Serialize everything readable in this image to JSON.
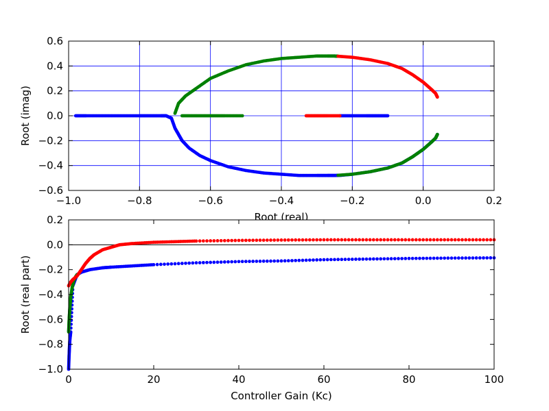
{
  "chart_data": [
    {
      "type": "scatter",
      "title": "",
      "xlabel": "Root (real)",
      "ylabel": "Root (imag)",
      "xlim": [
        -1.0,
        0.2
      ],
      "ylim": [
        -0.6,
        0.6
      ],
      "xticks": [
        -1.0,
        -0.8,
        -0.6,
        -0.4,
        -0.2,
        0.0,
        0.2
      ],
      "yticks": [
        -0.6,
        -0.4,
        -0.2,
        0.0,
        0.2,
        0.4,
        0.6
      ],
      "xtick_labels": [
        "−1.0",
        "−0.8",
        "−0.6",
        "−0.4",
        "−0.2",
        "0.0",
        "0.2"
      ],
      "ytick_labels": [
        "−0.6",
        "−0.4",
        "−0.2",
        "0.0",
        "0.2",
        "0.4",
        "0.6"
      ],
      "grid": true,
      "series": [
        {
          "color": "#0000ff",
          "x": [
            -0.98,
            -0.95,
            -0.9,
            -0.85,
            -0.8,
            -0.77,
            -0.74,
            -0.725,
            -0.71,
            -0.7,
            -0.69,
            -0.68,
            -0.66,
            -0.63,
            -0.6,
            -0.55,
            -0.5,
            -0.45,
            -0.4,
            -0.35,
            -0.3,
            -0.27,
            -0.25,
            -0.23,
            -0.2,
            -0.15,
            -0.1,
            -0.06,
            -0.03,
            0.0,
            0.02,
            0.035,
            0.04
          ],
          "y": [
            0,
            0,
            0,
            0,
            0,
            0,
            0,
            0,
            -0.02,
            -0.1,
            -0.15,
            -0.2,
            -0.26,
            -0.32,
            -0.36,
            -0.41,
            -0.44,
            -0.46,
            -0.47,
            -0.48,
            -0.48,
            -0.48,
            -0.48,
            -0.478,
            -0.47,
            -0.45,
            -0.42,
            -0.38,
            -0.33,
            -0.27,
            -0.22,
            -0.18,
            -0.15
          ]
        },
        {
          "color": "#0000ff",
          "x": [
            -0.235,
            -0.2,
            -0.16,
            -0.13,
            -0.1
          ],
          "y": [
            0,
            0,
            0,
            0,
            0
          ]
        },
        {
          "color": "#008000",
          "x": [
            -0.7,
            -0.69,
            -0.67,
            -0.64,
            -0.6,
            -0.55,
            -0.5,
            -0.45,
            -0.4,
            -0.35,
            -0.3,
            -0.27,
            -0.25,
            -0.24
          ],
          "y": [
            0.02,
            0.1,
            0.16,
            0.22,
            0.3,
            0.36,
            0.41,
            0.44,
            0.46,
            0.47,
            0.48,
            0.48,
            0.48,
            0.478
          ]
        },
        {
          "color": "#008000",
          "x": [
            -0.68,
            -0.64,
            -0.6,
            -0.56,
            -0.51
          ],
          "y": [
            0,
            0,
            0,
            0,
            0
          ]
        },
        {
          "color": "#008000",
          "x": [
            -0.24,
            -0.2,
            -0.15,
            -0.1,
            -0.06,
            -0.03,
            0.0,
            0.02,
            0.035,
            0.04
          ],
          "y": [
            -0.478,
            -0.47,
            -0.45,
            -0.42,
            -0.38,
            -0.33,
            -0.27,
            -0.22,
            -0.18,
            -0.15
          ]
        },
        {
          "color": "#ff0000",
          "x": [
            -0.24,
            -0.2,
            -0.15,
            -0.1,
            -0.06,
            -0.03,
            0.0,
            0.02,
            0.035,
            0.04
          ],
          "y": [
            0.478,
            0.47,
            0.45,
            0.42,
            0.38,
            0.33,
            0.27,
            0.22,
            0.18,
            0.15
          ]
        },
        {
          "color": "#ff0000",
          "x": [
            -0.33,
            -0.3,
            -0.27,
            -0.235
          ],
          "y": [
            0,
            0,
            0,
            0
          ]
        }
      ]
    },
    {
      "type": "scatter",
      "title": "",
      "xlabel": "Controller Gain (Kc)",
      "ylabel": "Root (real part)",
      "xlim": [
        0,
        100
      ],
      "ylim": [
        -1.0,
        0.2
      ],
      "xticks": [
        0,
        20,
        40,
        60,
        80,
        100
      ],
      "yticks": [
        -1.0,
        -0.8,
        -0.6,
        -0.4,
        -0.2,
        0.0,
        0.2
      ],
      "xtick_labels": [
        "0",
        "20",
        "40",
        "60",
        "80",
        "100"
      ],
      "ytick_labels": [
        "−1.0",
        "−0.8",
        "−0.6",
        "−0.4",
        "−0.2",
        "0.0",
        "0.2"
      ],
      "grid": false,
      "hline": 0.0,
      "series": [
        {
          "color": "#0000ff",
          "x": [
            0,
            0.1,
            0.2,
            0.3,
            0.5,
            1,
            2,
            3,
            5,
            8,
            10,
            15,
            20,
            30,
            40,
            50,
            60,
            70,
            80,
            90,
            100
          ],
          "y": [
            -1.0,
            -0.9,
            -0.82,
            -0.76,
            -0.7,
            -0.33,
            -0.24,
            -0.22,
            -0.2,
            -0.185,
            -0.18,
            -0.17,
            -0.16,
            -0.145,
            -0.135,
            -0.13,
            -0.12,
            -0.115,
            -0.11,
            -0.107,
            -0.105
          ]
        },
        {
          "color": "#008000",
          "x": [
            0,
            0.1,
            0.2,
            0.3,
            0.5,
            0.8,
            1.2,
            1.6,
            2.0
          ],
          "y": [
            -0.7,
            -0.62,
            -0.56,
            -0.5,
            -0.42,
            -0.35,
            -0.29,
            -0.26,
            -0.24
          ]
        },
        {
          "color": "#ff0000",
          "x": [
            0,
            0.5,
            1,
            2,
            3,
            4,
            5,
            6,
            8,
            10,
            12,
            15,
            20,
            25,
            30,
            40,
            50,
            60,
            70,
            80,
            90,
            100
          ],
          "y": [
            -0.33,
            -0.3,
            -0.28,
            -0.25,
            -0.2,
            -0.15,
            -0.11,
            -0.08,
            -0.04,
            -0.02,
            0.0,
            0.01,
            0.02,
            0.025,
            0.03,
            0.035,
            0.038,
            0.04,
            0.04,
            0.04,
            0.04,
            0.04
          ]
        }
      ]
    }
  ]
}
